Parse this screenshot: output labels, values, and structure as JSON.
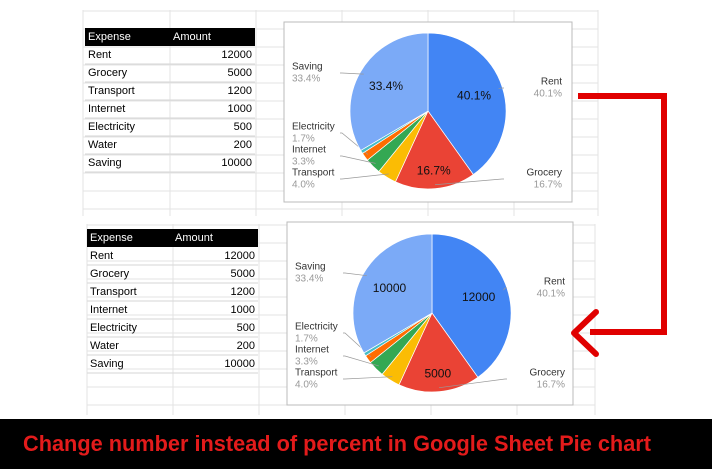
{
  "tables": [
    {
      "header": [
        "Expense",
        "Amount"
      ],
      "rows": [
        [
          "Rent",
          12000
        ],
        [
          "Grocery",
          5000
        ],
        [
          "Transport",
          1200
        ],
        [
          "Internet",
          1000
        ],
        [
          "Electricity",
          500
        ],
        [
          "Water",
          200
        ],
        [
          "Saving",
          10000
        ]
      ]
    },
    {
      "header": [
        "Expense",
        "Amount"
      ],
      "rows": [
        [
          "Rent",
          12000
        ],
        [
          "Grocery",
          5000
        ],
        [
          "Transport",
          1200
        ],
        [
          "Internet",
          1000
        ],
        [
          "Electricity",
          500
        ],
        [
          "Water",
          200
        ],
        [
          "Saving",
          10000
        ]
      ]
    }
  ],
  "chart_data": [
    {
      "type": "pie",
      "categories": [
        "Rent",
        "Grocery",
        "Transport",
        "Internet",
        "Electricity",
        "Water",
        "Saving"
      ],
      "values": [
        40.1,
        16.7,
        4.0,
        3.3,
        1.7,
        0.7,
        33.4
      ],
      "value_labels": [
        "40.1%",
        "16.7%",
        "4.0%",
        "3.3%",
        "1.7%",
        null,
        "33.4%"
      ],
      "colors": [
        "#4285f4",
        "#ea4335",
        "#fbbc04",
        "#34a853",
        "#ff6d01",
        "#46bdc6",
        "#7baaf7"
      ]
    },
    {
      "type": "pie",
      "categories": [
        "Rent",
        "Grocery",
        "Transport",
        "Internet",
        "Electricity",
        "Water",
        "Saving"
      ],
      "values": [
        12000,
        5000,
        1200,
        1000,
        500,
        200,
        10000
      ],
      "percent_labels": [
        "40.1%",
        "16.7%",
        "4.0%",
        "3.3%",
        "1.7%",
        null,
        "33.4%"
      ],
      "colors": [
        "#4285f4",
        "#ea4335",
        "#fbbc04",
        "#34a853",
        "#ff6d01",
        "#46bdc6",
        "#7baaf7"
      ]
    }
  ],
  "caption": "Change number instead of percent in Google Sheet Pie chart"
}
